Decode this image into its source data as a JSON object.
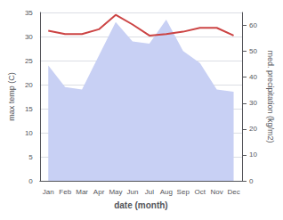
{
  "chart_data": {
    "type": "line",
    "xlabel": "date (month)",
    "ylabel": "max temp (C)",
    "y2label": "med. precipitation (kg/m2)",
    "categories": [
      "Jan",
      "Feb",
      "Mar",
      "Apr",
      "May",
      "Jun",
      "Jul",
      "Aug",
      "Sep",
      "Oct",
      "Nov",
      "Dec"
    ],
    "series": [
      {
        "type": "area",
        "color": "#c8d0f4",
        "values": [
          24.0,
          19.5,
          19.0,
          26.0,
          33.0,
          29.0,
          28.5,
          33.5,
          27.0,
          24.5,
          19.0,
          18.5
        ]
      },
      {
        "type": "line",
        "color": "#cc4444",
        "values": [
          31.2,
          30.5,
          30.5,
          31.5,
          34.5,
          32.5,
          30.2,
          30.5,
          31.0,
          31.8,
          31.8,
          30.2
        ]
      }
    ],
    "ylim": [
      0,
      35
    ],
    "yticks": [
      0,
      5,
      10,
      15,
      20,
      25,
      30,
      35
    ],
    "y2lim": [
      0,
      65
    ],
    "y2ticks": [
      0,
      10,
      20,
      30,
      40,
      50,
      60
    ],
    "grid": true
  }
}
